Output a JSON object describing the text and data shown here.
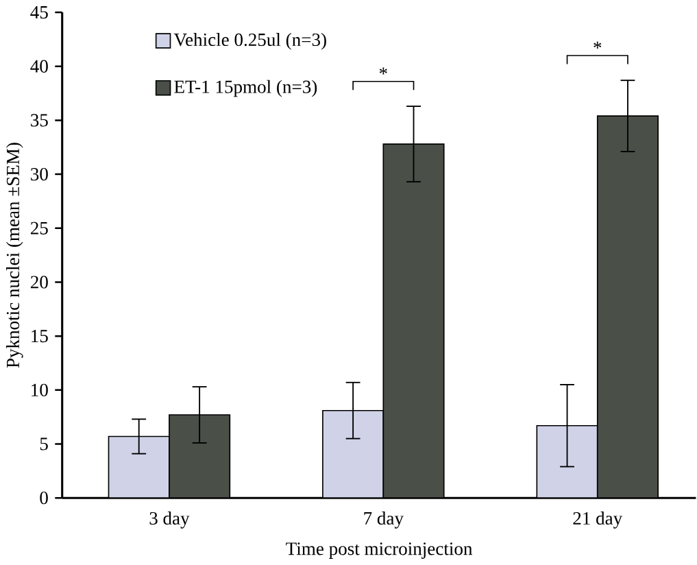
{
  "chart_data": {
    "type": "bar",
    "xlabel": "Time post microinjection",
    "ylabel": "Pyknotic nuclei (mean ±SEM)",
    "categories": [
      "3 day",
      "7 day",
      "21 day"
    ],
    "series": [
      {
        "name": "Vehicle 0.25ul (n=3)",
        "color": "#d0d3e8",
        "values": [
          5.7,
          8.1,
          6.7
        ],
        "errors": [
          1.6,
          2.6,
          3.8
        ]
      },
      {
        "name": "ET-1 15pmol (n=3)",
        "color": "#4a4f48",
        "values": [
          7.7,
          32.8,
          35.4
        ],
        "errors": [
          2.6,
          3.5,
          3.3
        ]
      }
    ],
    "ylim": [
      0,
      45
    ],
    "yticks": [
      0,
      5,
      10,
      15,
      20,
      25,
      30,
      35,
      40,
      45
    ],
    "annotations": [
      "*",
      "*"
    ],
    "legend": "top left",
    "grid": false
  }
}
